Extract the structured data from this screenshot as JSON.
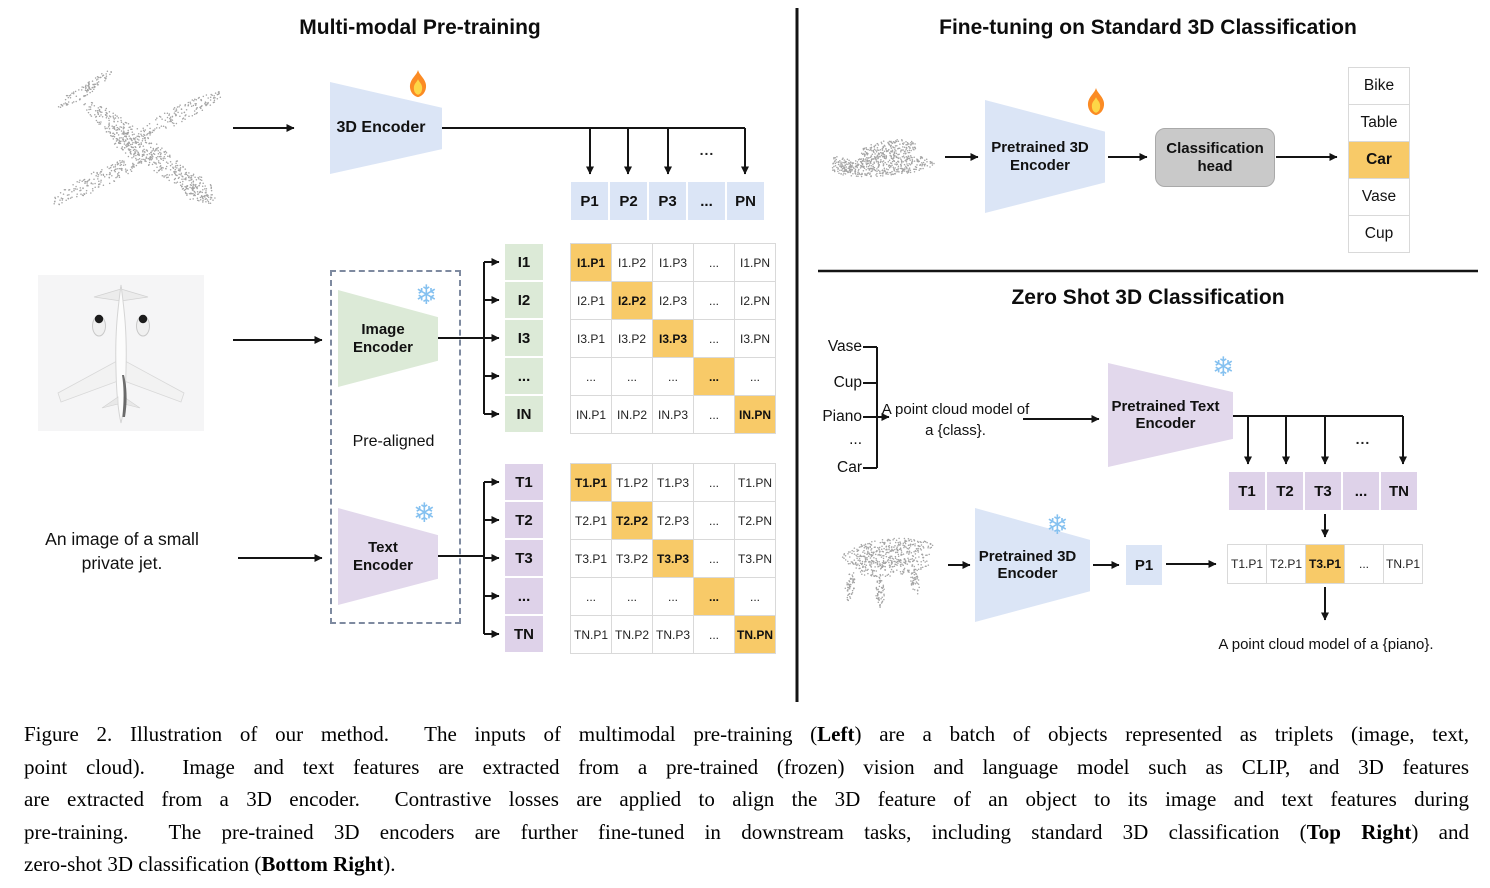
{
  "colors": {
    "blue": "#dbe5f6",
    "green": "#dcead7",
    "purple": "#e2d8ec",
    "purple_cell": "#ded2e9",
    "orange": "#f8ca68",
    "gray_head": "#c9c9c9",
    "snowflake_blue": "#85c1f0",
    "flame_orange": "#fb8b24",
    "point_cloud_gray": "#a3a3a3"
  },
  "left": {
    "title": "Multi-modal Pre-training",
    "encoder_3d": "3D Encoder",
    "image_encoder": [
      "Image",
      "Encoder"
    ],
    "text_encoder": [
      "Text",
      "Encoder"
    ],
    "pre_aligned": "Pre-aligned",
    "image_caption": [
      "An image of a small",
      "private jet."
    ],
    "ellipsis": "...",
    "p_row": [
      "P1",
      "P2",
      "P3",
      "...",
      "PN"
    ],
    "i_labels": [
      "I1",
      "I2",
      "I3",
      "...",
      "IN"
    ],
    "t_labels": [
      "T1",
      "T2",
      "T3",
      "...",
      "TN"
    ],
    "i_matrix": [
      [
        "I1.P1",
        "I1.P2",
        "I1.P3",
        "...",
        "I1.PN"
      ],
      [
        "I2.P1",
        "I2.P2",
        "I2.P3",
        "...",
        "I2.PN"
      ],
      [
        "I3.P1",
        "I3.P2",
        "I3.P3",
        "...",
        "I3.PN"
      ],
      [
        "...",
        "...",
        "...",
        "...",
        "..."
      ],
      [
        "IN.P1",
        "IN.P2",
        "IN.P3",
        "...",
        "IN.PN"
      ]
    ],
    "t_matrix": [
      [
        "T1.P1",
        "T1.P2",
        "T1.P3",
        "...",
        "T1.PN"
      ],
      [
        "T2.P1",
        "T2.P2",
        "T2.P3",
        "...",
        "T2.PN"
      ],
      [
        "T3.P1",
        "T3.P2",
        "T3.P3",
        "...",
        "T3.PN"
      ],
      [
        "...",
        "...",
        "...",
        "...",
        "..."
      ],
      [
        "TN.P1",
        "TN.P2",
        "TN.P3",
        "...",
        "TN.PN"
      ]
    ]
  },
  "top_right": {
    "title": "Fine-tuning on Standard 3D Classification",
    "encoder": [
      "Pretrained 3D",
      "Encoder"
    ],
    "head": [
      "Classification",
      "head"
    ],
    "classes": [
      "Bike",
      "Table",
      "Car",
      "Vase",
      "Cup"
    ],
    "highlight": "Car"
  },
  "bottom_right": {
    "title": "Zero Shot 3D Classification",
    "class_list": [
      "Vase",
      "Cup",
      "Piano",
      "...",
      "Car"
    ],
    "prompt": [
      "A point cloud model of",
      "a {class}."
    ],
    "text_encoder": [
      "Pretrained Text",
      "Encoder"
    ],
    "t_row": [
      "T1",
      "T2",
      "T3",
      "...",
      "TN"
    ],
    "encoder_3d": [
      "Pretrained 3D",
      "Encoder"
    ],
    "p1": "P1",
    "tp_row": [
      "T1.P1",
      "T2.P1",
      "T3.P1",
      "...",
      "TN.P1"
    ],
    "highlight_index": 2,
    "ellipsis": "...",
    "result": "A point cloud model of a {piano}."
  },
  "caption": {
    "lines": [
      [
        {
          "t": "Figure 2. Illustration of our method.  The inputs of multimodal pre-training ("
        },
        {
          "t": "Left",
          "b": true
        },
        {
          "t": ") are a batch of objects represented as triplets (image, text,"
        }
      ],
      [
        {
          "t": "point cloud).  Image and text features are extracted from a pre-trained (frozen) vision and language model such as CLIP, and 3D features"
        }
      ],
      [
        {
          "t": "are extracted from a 3D encoder.  Contrastive losses are applied to align the 3D feature of an object to its image and text features during"
        }
      ],
      [
        {
          "t": "pre-training.  The pre-trained 3D encoders are further fine-tuned in downstream tasks, including standard 3D classification ("
        },
        {
          "t": "Top Right",
          "b": true
        },
        {
          "t": ") and"
        }
      ],
      [
        {
          "t": "zero-shot 3D classification ("
        },
        {
          "t": "Bottom Right",
          "b": true
        },
        {
          "t": ")."
        }
      ]
    ]
  }
}
